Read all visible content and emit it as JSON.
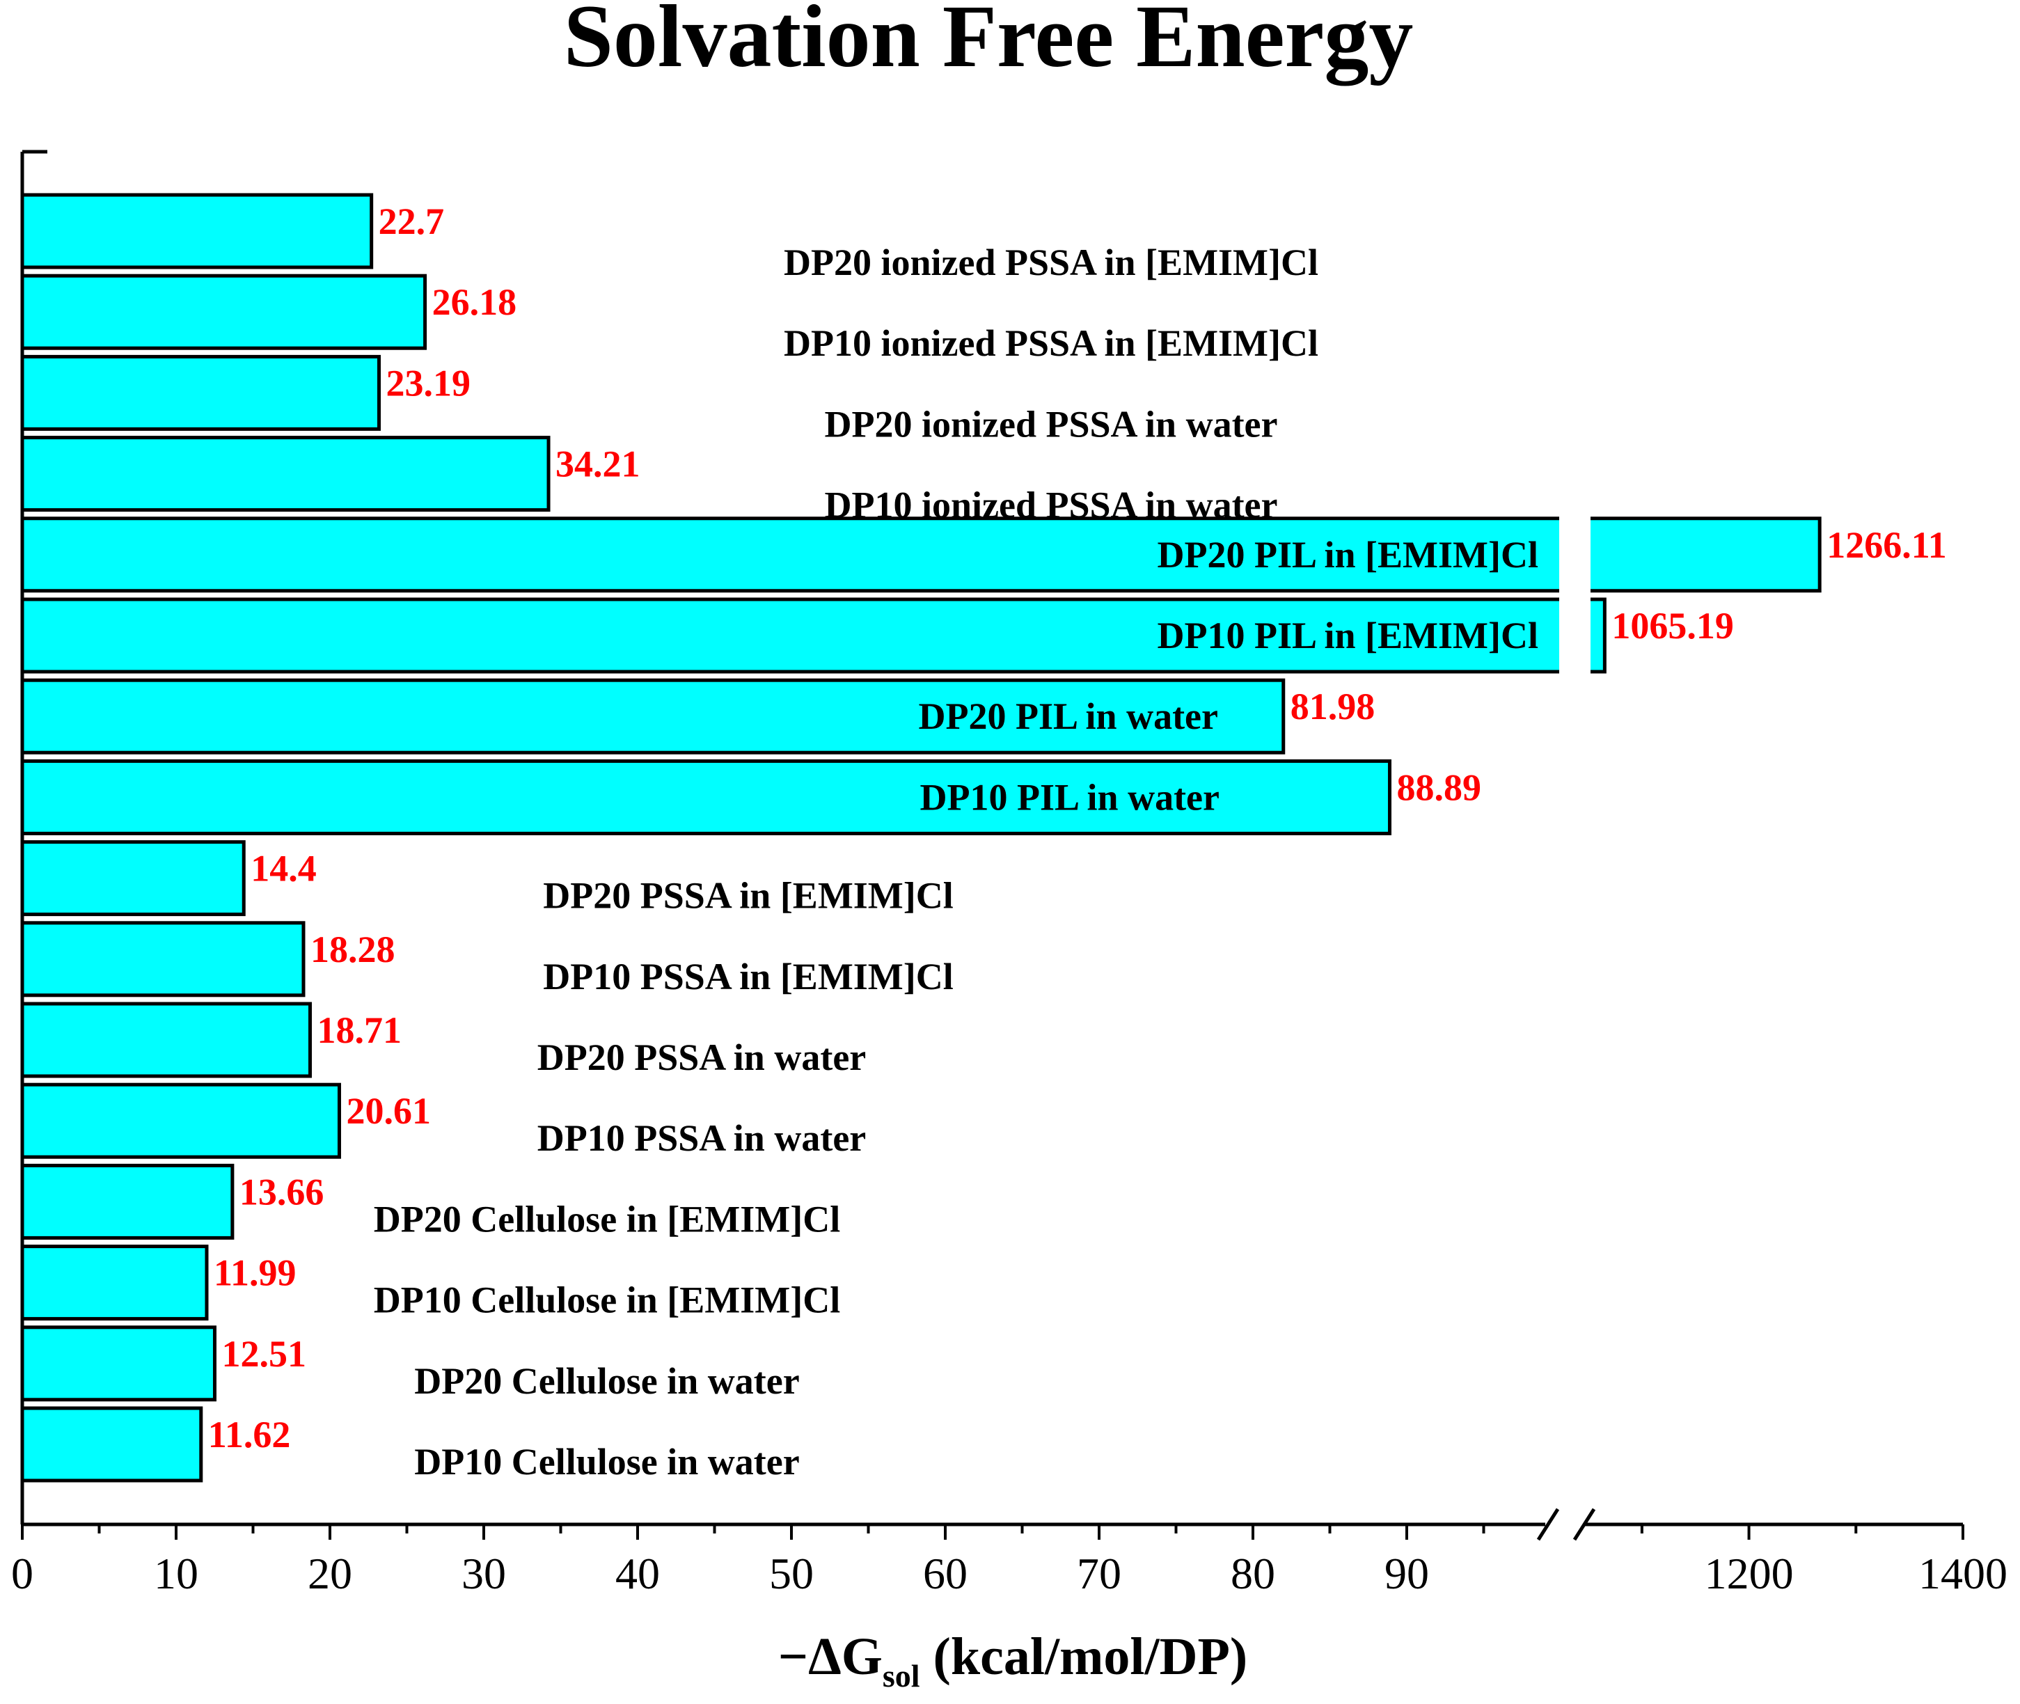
{
  "chart_data": {
    "type": "bar",
    "orientation": "horizontal",
    "title": "Solvation Free Energy",
    "xlabel_prefix": "−ΔG",
    "xlabel_subscript": "sol",
    "xlabel_suffix": " (kcal/mol/DP)",
    "x_axis": {
      "segments": [
        {
          "range": [
            0,
            99
          ]
        },
        {
          "range": [
            1050,
            1400
          ]
        }
      ],
      "ticks_left": [
        "0",
        "10",
        "20",
        "30",
        "40",
        "50",
        "60",
        "70",
        "80",
        "90"
      ],
      "ticks_right": [
        "1200",
        "1400"
      ]
    },
    "bar_color": "#00FFFF",
    "value_label_color": "#FF0000",
    "categories": [
      "DP20 ionized PSSA in [EMIM]Cl",
      "DP10 ionized PSSA in [EMIM]Cl",
      "DP20 ionized PSSA in water",
      "DP10 ionized PSSA in water",
      "DP20 PIL in [EMIM]Cl",
      "DP10 PIL in [EMIM]Cl",
      "DP20 PIL in water",
      "DP10 PIL in water",
      "DP20 PSSA in [EMIM]Cl",
      "DP10 PSSA in [EMIM]Cl",
      "DP20 PSSA in water",
      "DP10 PSSA in water",
      "DP20 Cellulose in [EMIM]Cl",
      "DP10 Cellulose in [EMIM]Cl",
      "DP20 Cellulose in water",
      "DP10 Cellulose in water"
    ],
    "values": [
      22.7,
      26.18,
      23.19,
      34.21,
      1266.11,
      1065.19,
      81.98,
      88.89,
      14.4,
      18.28,
      18.71,
      20.61,
      13.66,
      11.99,
      12.51,
      11.62
    ],
    "value_labels": [
      "22.7",
      "26.18",
      "23.19",
      "34.21",
      "1266.11",
      "1065.19",
      "81.98",
      "88.89",
      "14.4",
      "18.28",
      "18.71",
      "20.61",
      "13.66",
      "11.99",
      "12.51",
      "11.62"
    ]
  }
}
